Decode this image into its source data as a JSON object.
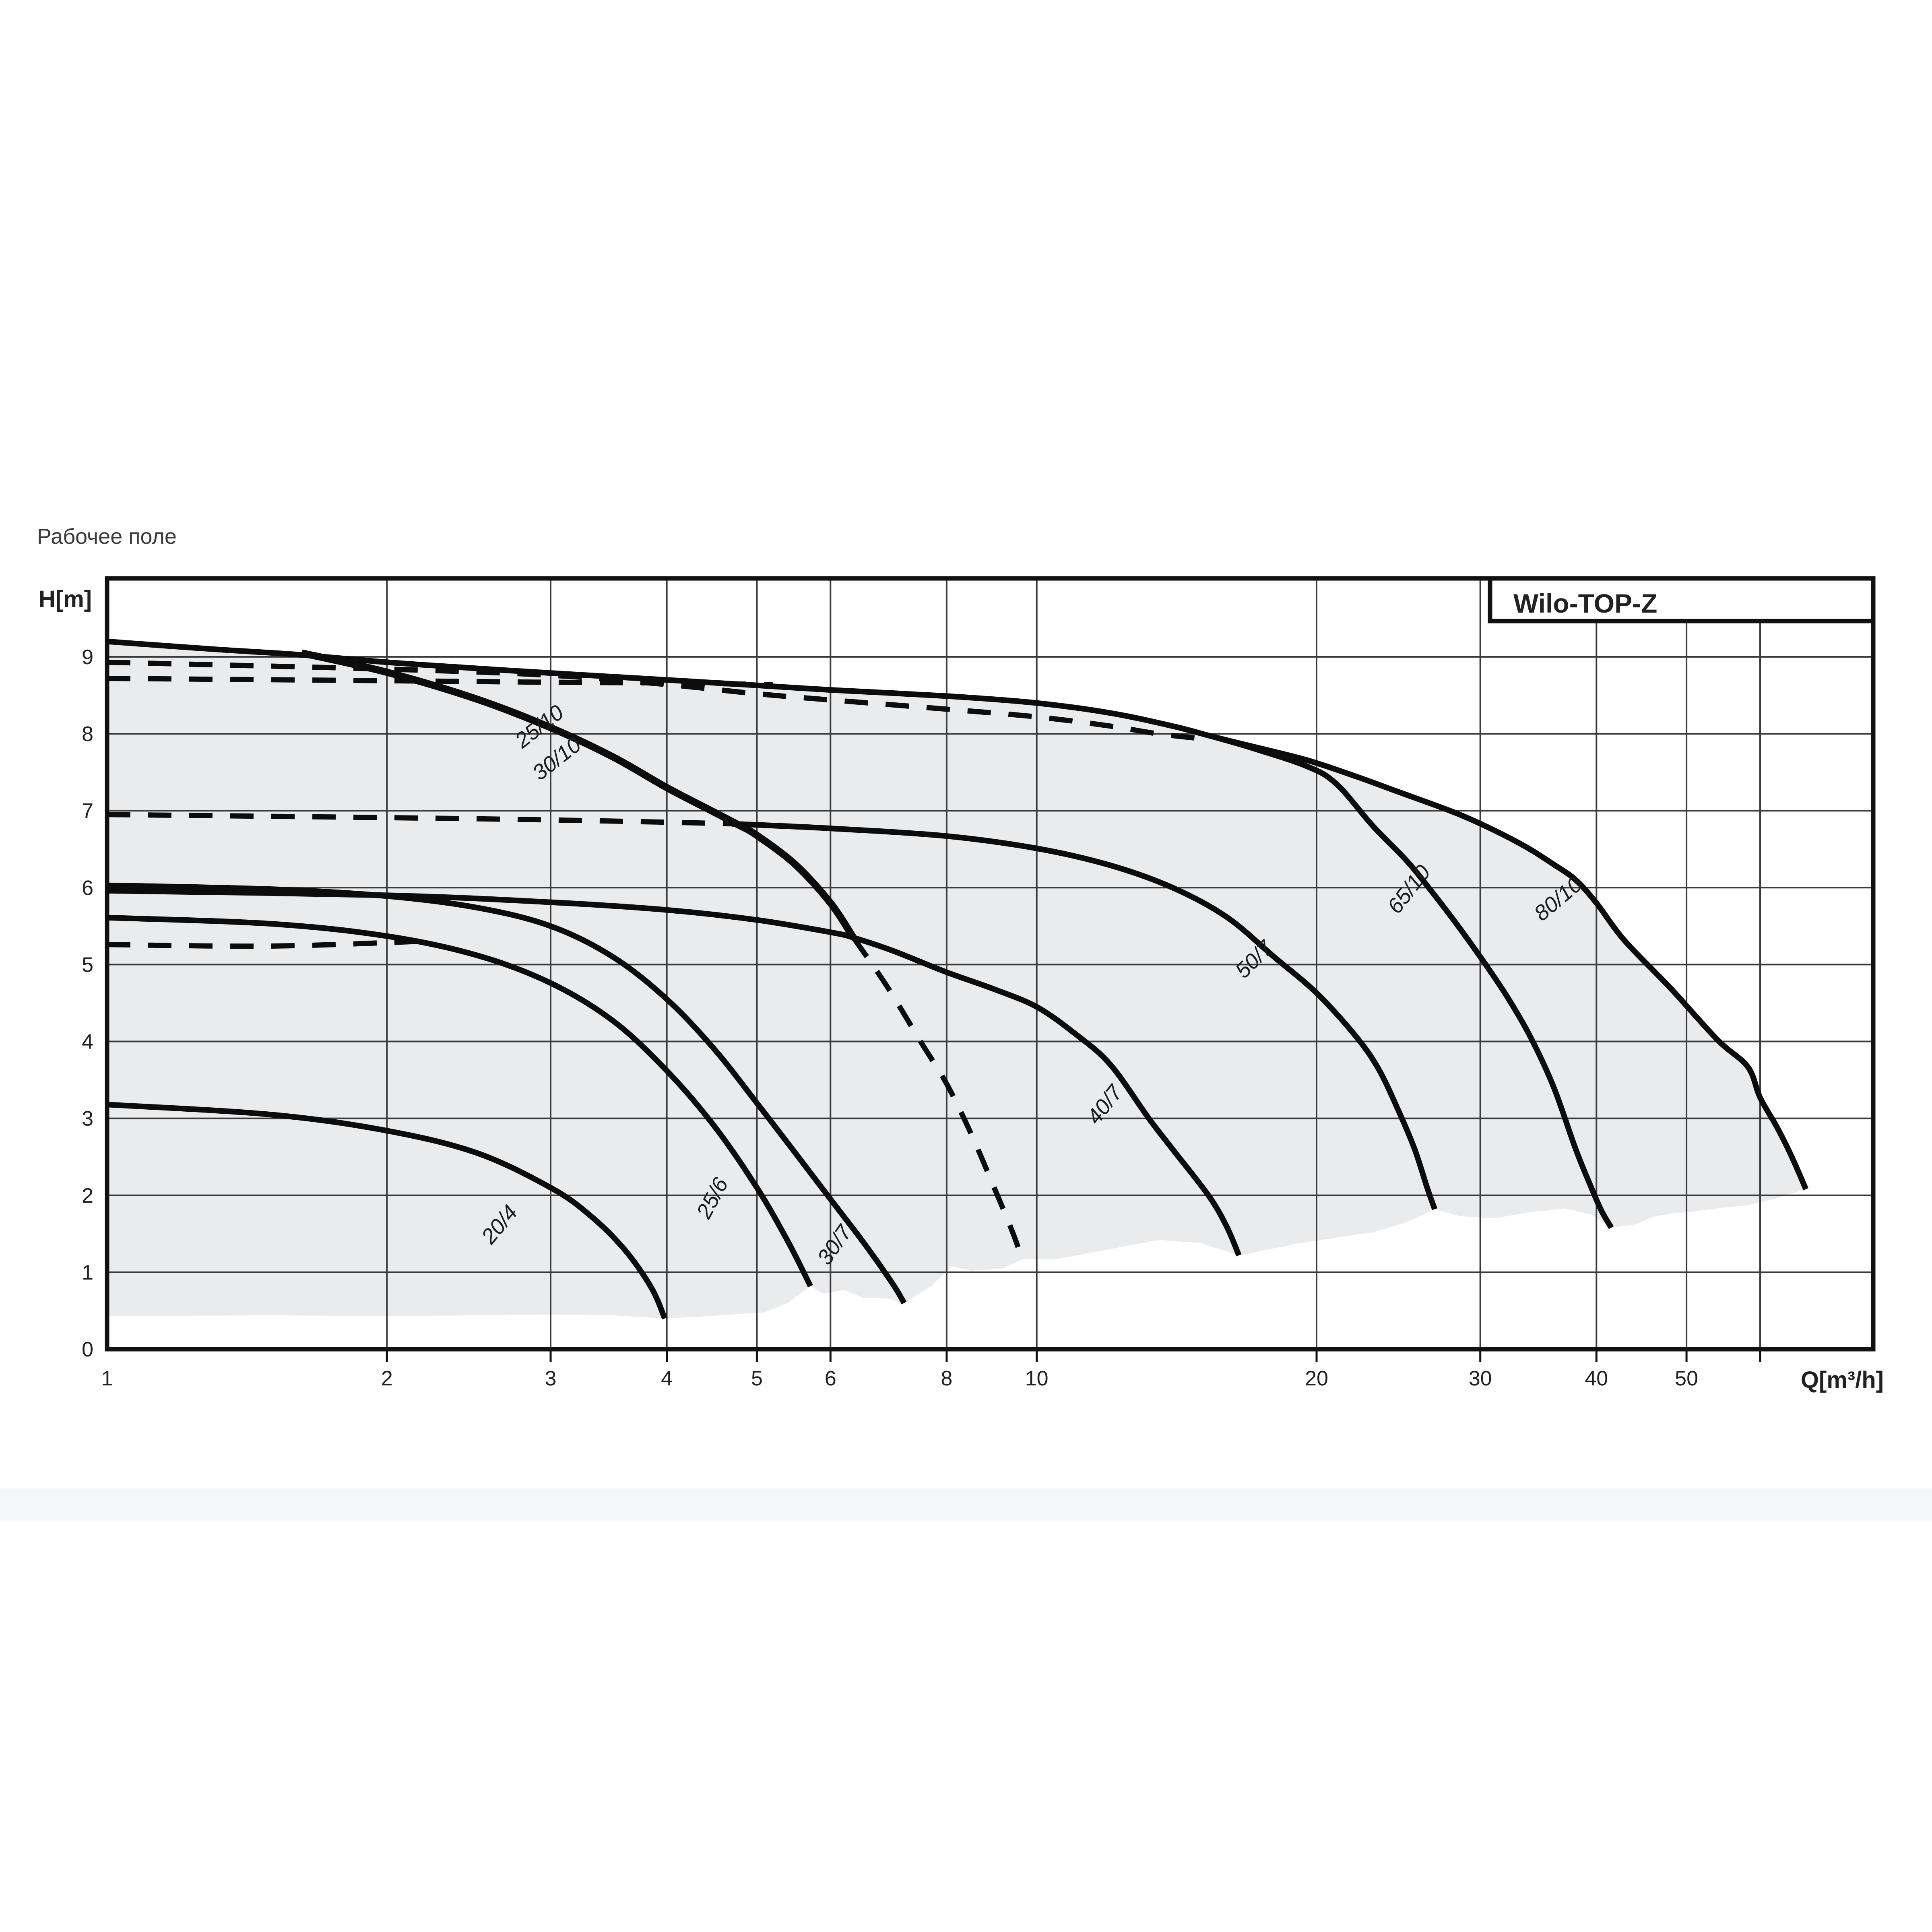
{
  "page": {
    "title": "Рабочее поле"
  },
  "chart": {
    "brand_label": "Wilo-TOP-Z",
    "y_axis_label": "H[m]",
    "x_axis_label": "Q[m³/h]",
    "colors": {
      "region_fill": "#e9ebed",
      "grid": "#3a3a3a",
      "curve": "#0c0c0c",
      "border": "#111111",
      "text": "#212121",
      "title_text": "#3b3b3b"
    }
  },
  "chart_data": {
    "type": "line",
    "title": "Рабочее поле",
    "x_scale": "log",
    "xlabel": "Q[m³/h]",
    "ylabel": "H[m]",
    "xlim": [
      1,
      79.4
    ],
    "ylim": [
      0,
      10.02
    ],
    "x_gridlines": [
      2,
      3,
      4,
      5,
      6,
      8,
      10,
      20,
      30,
      40,
      50,
      60
    ],
    "y_gridlines": [
      1,
      2,
      3,
      4,
      5,
      6,
      7,
      8,
      9
    ],
    "x_ticks": [
      {
        "q": 1,
        "label": "1"
      },
      {
        "q": 2,
        "label": "2"
      },
      {
        "q": 3,
        "label": "3"
      },
      {
        "q": 4,
        "label": "4"
      },
      {
        "q": 5,
        "label": "5"
      },
      {
        "q": 6,
        "label": "6"
      },
      {
        "q": 8,
        "label": "8"
      },
      {
        "q": 10,
        "label": "10"
      },
      {
        "q": 20,
        "label": "20"
      },
      {
        "q": 30,
        "label": "30"
      },
      {
        "q": 40,
        "label": "40"
      },
      {
        "q": 50,
        "label": "50"
      }
    ],
    "y_ticks": [
      {
        "h": 0,
        "label": "0"
      },
      {
        "h": 1,
        "label": "1"
      },
      {
        "h": 2,
        "label": "2"
      },
      {
        "h": 3,
        "label": "3"
      },
      {
        "h": 4,
        "label": "4"
      },
      {
        "h": 5,
        "label": "5"
      },
      {
        "h": 6,
        "label": "6"
      },
      {
        "h": 7,
        "label": "7"
      },
      {
        "h": 8,
        "label": "8"
      },
      {
        "h": 9,
        "label": "9"
      }
    ],
    "working_field_region": [
      [
        1,
        0.43
      ],
      [
        1,
        9.2
      ],
      [
        1.3,
        9.1
      ],
      [
        1.6,
        9.03
      ],
      [
        2,
        8.93
      ],
      [
        2.5,
        8.85
      ],
      [
        3,
        8.79
      ],
      [
        4,
        8.7
      ],
      [
        5,
        8.63
      ],
      [
        6,
        8.57
      ],
      [
        7,
        8.53
      ],
      [
        8,
        8.49
      ],
      [
        9,
        8.44
      ],
      [
        10,
        8.4
      ],
      [
        11,
        8.34
      ],
      [
        12,
        8.27
      ],
      [
        13,
        8.18
      ],
      [
        14,
        8.1
      ],
      [
        15,
        8.01
      ],
      [
        15.5,
        7.96
      ],
      [
        17,
        7.84
      ],
      [
        19.5,
        7.66
      ],
      [
        22,
        7.45
      ],
      [
        24.3,
        7.26
      ],
      [
        26,
        7.13
      ],
      [
        28.1,
        6.98
      ],
      [
        31,
        6.75
      ],
      [
        33.7,
        6.52
      ],
      [
        36,
        6.3
      ],
      [
        38,
        6.1
      ],
      [
        40,
        5.8
      ],
      [
        42.9,
        5.31
      ],
      [
        46,
        4.95
      ],
      [
        48,
        4.7
      ],
      [
        51,
        4.37
      ],
      [
        54,
        4.02
      ],
      [
        58.2,
        3.67
      ],
      [
        60,
        3.27
      ],
      [
        62.6,
        2.88
      ],
      [
        64.9,
        2.5
      ],
      [
        66,
        2.3
      ],
      [
        67.2,
        2.08
      ],
      [
        62,
        1.95
      ],
      [
        58,
        1.87
      ],
      [
        54,
        1.83
      ],
      [
        50,
        1.78
      ],
      [
        48,
        1.76
      ],
      [
        46,
        1.72
      ],
      [
        44,
        1.62
      ],
      [
        41.5,
        1.58
      ],
      [
        39.5,
        1.75
      ],
      [
        37,
        1.83
      ],
      [
        34,
        1.78
      ],
      [
        31,
        1.7
      ],
      [
        28.5,
        1.73
      ],
      [
        26.8,
        1.82
      ],
      [
        25,
        1.65
      ],
      [
        23,
        1.52
      ],
      [
        21,
        1.45
      ],
      [
        19,
        1.37
      ],
      [
        17.5,
        1.28
      ],
      [
        16.5,
        1.22
      ],
      [
        15,
        1.38
      ],
      [
        13.5,
        1.42
      ],
      [
        12,
        1.3
      ],
      [
        10.5,
        1.17
      ],
      [
        9.65,
        1.17
      ],
      [
        9.2,
        1.05
      ],
      [
        8.5,
        1.02
      ],
      [
        8.1,
        1.08
      ],
      [
        7.7,
        0.82
      ],
      [
        7.2,
        0.6
      ],
      [
        6.9,
        0.66
      ],
      [
        6.5,
        0.67
      ],
      [
        6.2,
        0.77
      ],
      [
        5.9,
        0.72
      ],
      [
        5.71,
        0.82
      ],
      [
        5.4,
        0.6
      ],
      [
        5.1,
        0.48
      ],
      [
        4.7,
        0.45
      ],
      [
        4.3,
        0.42
      ],
      [
        3.98,
        0.4
      ],
      [
        3.5,
        0.44
      ],
      [
        3,
        0.45
      ],
      [
        2.5,
        0.44
      ],
      [
        2,
        0.43
      ],
      [
        1.5,
        0.44
      ]
    ],
    "series": [
      {
        "name": "envelope-80/10",
        "style": "solid",
        "width": 14,
        "points": [
          [
            1,
            9.2
          ],
          [
            1.3,
            9.1
          ],
          [
            1.6,
            9.03
          ],
          [
            2,
            8.93
          ],
          [
            2.5,
            8.85
          ],
          [
            3,
            8.79
          ],
          [
            4,
            8.7
          ],
          [
            5,
            8.63
          ],
          [
            6,
            8.57
          ],
          [
            8,
            8.49
          ],
          [
            10,
            8.4
          ],
          [
            12,
            8.27
          ],
          [
            14,
            8.1
          ],
          [
            15.5,
            7.96
          ],
          [
            17,
            7.84
          ],
          [
            19.5,
            7.66
          ],
          [
            22,
            7.45
          ],
          [
            24.3,
            7.26
          ],
          [
            28.1,
            6.98
          ],
          [
            31,
            6.75
          ],
          [
            33.7,
            6.52
          ],
          [
            36,
            6.3
          ],
          [
            38,
            6.1
          ],
          [
            40,
            5.8
          ],
          [
            42.9,
            5.31
          ],
          [
            48,
            4.7
          ],
          [
            54,
            4.02
          ],
          [
            58.2,
            3.67
          ],
          [
            60,
            3.27
          ],
          [
            62.6,
            2.88
          ],
          [
            64.9,
            2.5
          ],
          [
            67.2,
            2.08
          ]
        ]
      },
      {
        "name": "65/10",
        "style": "solid",
        "width": 14,
        "points": [
          [
            15.5,
            7.96
          ],
          [
            17,
            7.82
          ],
          [
            19.5,
            7.58
          ],
          [
            21,
            7.35
          ],
          [
            23,
            6.8
          ],
          [
            25,
            6.35
          ],
          [
            26.4,
            6.0
          ],
          [
            28,
            5.6
          ],
          [
            30,
            5.1
          ],
          [
            32,
            4.6
          ],
          [
            34,
            4.05
          ],
          [
            36,
            3.4
          ],
          [
            38,
            2.6
          ],
          [
            39.5,
            2.1
          ],
          [
            40.5,
            1.8
          ],
          [
            41.5,
            1.58
          ]
        ]
      },
      {
        "name": "50/7-low-flow",
        "style": "dashed",
        "width": 13,
        "points": [
          [
            1,
            6.95
          ],
          [
            2,
            6.91
          ],
          [
            3,
            6.88
          ],
          [
            4,
            6.85
          ],
          [
            4.7,
            6.83
          ]
        ]
      },
      {
        "name": "50/7",
        "style": "solid",
        "width": 14,
        "points": [
          [
            4.7,
            6.83
          ],
          [
            6,
            6.77
          ],
          [
            8,
            6.67
          ],
          [
            10,
            6.51
          ],
          [
            12,
            6.29
          ],
          [
            14,
            6.0
          ],
          [
            16,
            5.62
          ],
          [
            18,
            5.1
          ],
          [
            20,
            4.63
          ],
          [
            22,
            4.08
          ],
          [
            23.3,
            3.65
          ],
          [
            24.5,
            3.1
          ],
          [
            25.5,
            2.6
          ],
          [
            26.3,
            2.1
          ],
          [
            26.8,
            1.82
          ]
        ]
      },
      {
        "name": "40/7",
        "style": "solid",
        "width": 14,
        "points": [
          [
            1,
            5.96
          ],
          [
            2,
            5.9
          ],
          [
            3,
            5.81
          ],
          [
            4,
            5.71
          ],
          [
            5,
            5.58
          ],
          [
            6,
            5.42
          ],
          [
            6.35,
            5.35
          ],
          [
            7,
            5.18
          ],
          [
            8,
            4.9
          ],
          [
            9,
            4.68
          ],
          [
            10,
            4.45
          ],
          [
            11,
            4.1
          ],
          [
            12,
            3.7
          ],
          [
            13.2,
            3.0
          ],
          [
            14,
            2.6
          ],
          [
            15.3,
            2.0
          ],
          [
            16,
            1.6
          ],
          [
            16.5,
            1.22
          ]
        ]
      },
      {
        "name": "30/7",
        "style": "solid",
        "width": 14,
        "points": [
          [
            1,
            6.03
          ],
          [
            1.5,
            5.98
          ],
          [
            2,
            5.89
          ],
          [
            2.5,
            5.74
          ],
          [
            3,
            5.5
          ],
          [
            3.5,
            5.1
          ],
          [
            4,
            4.55
          ],
          [
            4.5,
            3.9
          ],
          [
            5,
            3.2
          ],
          [
            5.5,
            2.55
          ],
          [
            6,
            1.95
          ],
          [
            6.5,
            1.4
          ],
          [
            7,
            0.85
          ],
          [
            7.2,
            0.6
          ]
        ]
      },
      {
        "name": "25/6",
        "style": "solid",
        "width": 14,
        "points": [
          [
            1,
            5.61
          ],
          [
            1.5,
            5.53
          ],
          [
            2,
            5.37
          ],
          [
            2.5,
            5.12
          ],
          [
            3,
            4.76
          ],
          [
            3.5,
            4.27
          ],
          [
            4,
            3.62
          ],
          [
            4.5,
            2.9
          ],
          [
            5,
            2.1
          ],
          [
            5.4,
            1.4
          ],
          [
            5.71,
            0.82
          ]
        ]
      },
      {
        "name": "20/4",
        "style": "solid",
        "width": 14,
        "points": [
          [
            1,
            3.18
          ],
          [
            1.5,
            3.05
          ],
          [
            2,
            2.84
          ],
          [
            2.5,
            2.55
          ],
          [
            3,
            2.1
          ],
          [
            3.3,
            1.75
          ],
          [
            3.6,
            1.3
          ],
          [
            3.85,
            0.8
          ],
          [
            3.98,
            0.4
          ]
        ]
      },
      {
        "name": "25/10-30/10",
        "style": "solid",
        "width": 18,
        "points": [
          [
            1.62,
            9.05
          ],
          [
            2,
            8.8
          ],
          [
            2.5,
            8.45
          ],
          [
            3,
            8.08
          ],
          [
            3.5,
            7.7
          ],
          [
            4,
            7.3
          ],
          [
            4.5,
            6.98
          ],
          [
            4.77,
            6.82
          ],
          [
            5,
            6.68
          ],
          [
            5.5,
            6.3
          ],
          [
            6,
            5.8
          ],
          [
            6.35,
            5.35
          ]
        ]
      },
      {
        "name": "25/10-30/10-dashed-tail",
        "style": "dashed",
        "width": 13,
        "points": [
          [
            6.35,
            5.35
          ],
          [
            6.7,
            4.95
          ],
          [
            7,
            4.6
          ],
          [
            7.5,
            4.0
          ],
          [
            8,
            3.45
          ],
          [
            8.5,
            2.8
          ],
          [
            9,
            2.1
          ],
          [
            9.4,
            1.55
          ],
          [
            9.65,
            1.17
          ]
        ]
      },
      {
        "name": "dashed-top-upper",
        "style": "dashed",
        "width": 13,
        "points": [
          [
            1,
            8.93
          ],
          [
            2,
            8.84
          ],
          [
            3,
            8.76
          ],
          [
            4,
            8.64
          ],
          [
            5,
            8.52
          ],
          [
            6,
            8.44
          ],
          [
            8,
            8.32
          ],
          [
            10,
            8.22
          ],
          [
            12,
            8.1
          ],
          [
            13.5,
            8.0
          ],
          [
            15.2,
            7.93
          ]
        ]
      },
      {
        "name": "dashed-top-lower",
        "style": "dashed",
        "width": 13,
        "points": [
          [
            1,
            8.72
          ],
          [
            2,
            8.69
          ],
          [
            3,
            8.67
          ],
          [
            4,
            8.66
          ],
          [
            5.2,
            8.64
          ]
        ]
      },
      {
        "name": "dashed-low",
        "style": "dashed",
        "width": 13,
        "points": [
          [
            1,
            5.26
          ],
          [
            1.5,
            5.24
          ],
          [
            2.15,
            5.3
          ]
        ]
      }
    ],
    "curve_labels": [
      {
        "text": "25/10",
        "q": 2.95,
        "h": 8.02,
        "angle": -38
      },
      {
        "text": "30/10",
        "q": 3.08,
        "h": 7.6,
        "angle": -38
      },
      {
        "text": "20/4",
        "q": 2.68,
        "h": 1.56,
        "angle": -50
      },
      {
        "text": "25/6",
        "q": 4.55,
        "h": 1.92,
        "angle": -62
      },
      {
        "text": "30/7",
        "q": 6.15,
        "h": 1.3,
        "angle": -55
      },
      {
        "text": "40/7",
        "q": 12.0,
        "h": 3.12,
        "angle": -52
      },
      {
        "text": "50/7",
        "q": 17.35,
        "h": 5.0,
        "angle": -45
      },
      {
        "text": "65/10",
        "q": 25.5,
        "h": 5.92,
        "angle": -52
      },
      {
        "text": "80/10",
        "q": 36.8,
        "h": 5.78,
        "angle": -40
      }
    ],
    "legend_position": "none",
    "grid": true
  }
}
